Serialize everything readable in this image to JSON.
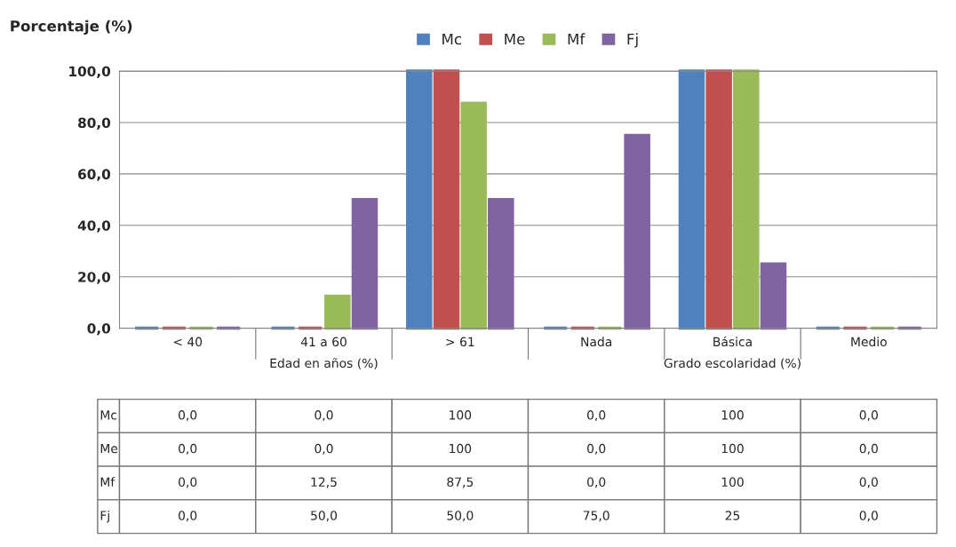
{
  "chart_data": {
    "type": "bar",
    "ylabel": "Porcentaje (%)",
    "categories": [
      "< 40",
      "41 a 60",
      "> 61",
      "Nada",
      "Básica",
      "Medio"
    ],
    "series": [
      {
        "name": "Mc",
        "color": "#4f81bd",
        "values": [
          0,
          0,
          100,
          0,
          100,
          0
        ],
        "value_labels": [
          "0,0",
          "0,0",
          "100",
          "0,0",
          "100",
          "0,0"
        ]
      },
      {
        "name": "Me",
        "color": "#c0504d",
        "values": [
          0,
          0,
          100,
          0,
          100,
          0
        ],
        "value_labels": [
          "0,0",
          "0,0",
          "100",
          "0,0",
          "100",
          "0,0"
        ]
      },
      {
        "name": "Mf",
        "color": "#9bbb59",
        "values": [
          0,
          12.5,
          87.5,
          0,
          100,
          0
        ],
        "value_labels": [
          "0,0",
          "12,5",
          "87,5",
          "0,0",
          "100",
          "0,0"
        ]
      },
      {
        "name": "Fj",
        "color": "#8064a2",
        "values": [
          0,
          50,
          50,
          75,
          25,
          0
        ],
        "value_labels": [
          "0,0",
          "50,0",
          "50,0",
          "75,0",
          "25",
          "0,0"
        ]
      }
    ],
    "annotations": [
      "Edad en años (%)",
      "Grado escolaridad (%)"
    ],
    "ylim": [
      0,
      100
    ],
    "yticks": [
      {
        "value": 0,
        "label": "0,0"
      },
      {
        "value": 20,
        "label": "20,0"
      },
      {
        "value": 40,
        "label": "40,0"
      },
      {
        "value": 60,
        "label": "60,0"
      },
      {
        "value": 80,
        "label": "80,0"
      },
      {
        "value": 100,
        "label": "100,0"
      }
    ],
    "grid": "y",
    "legend": "top"
  }
}
